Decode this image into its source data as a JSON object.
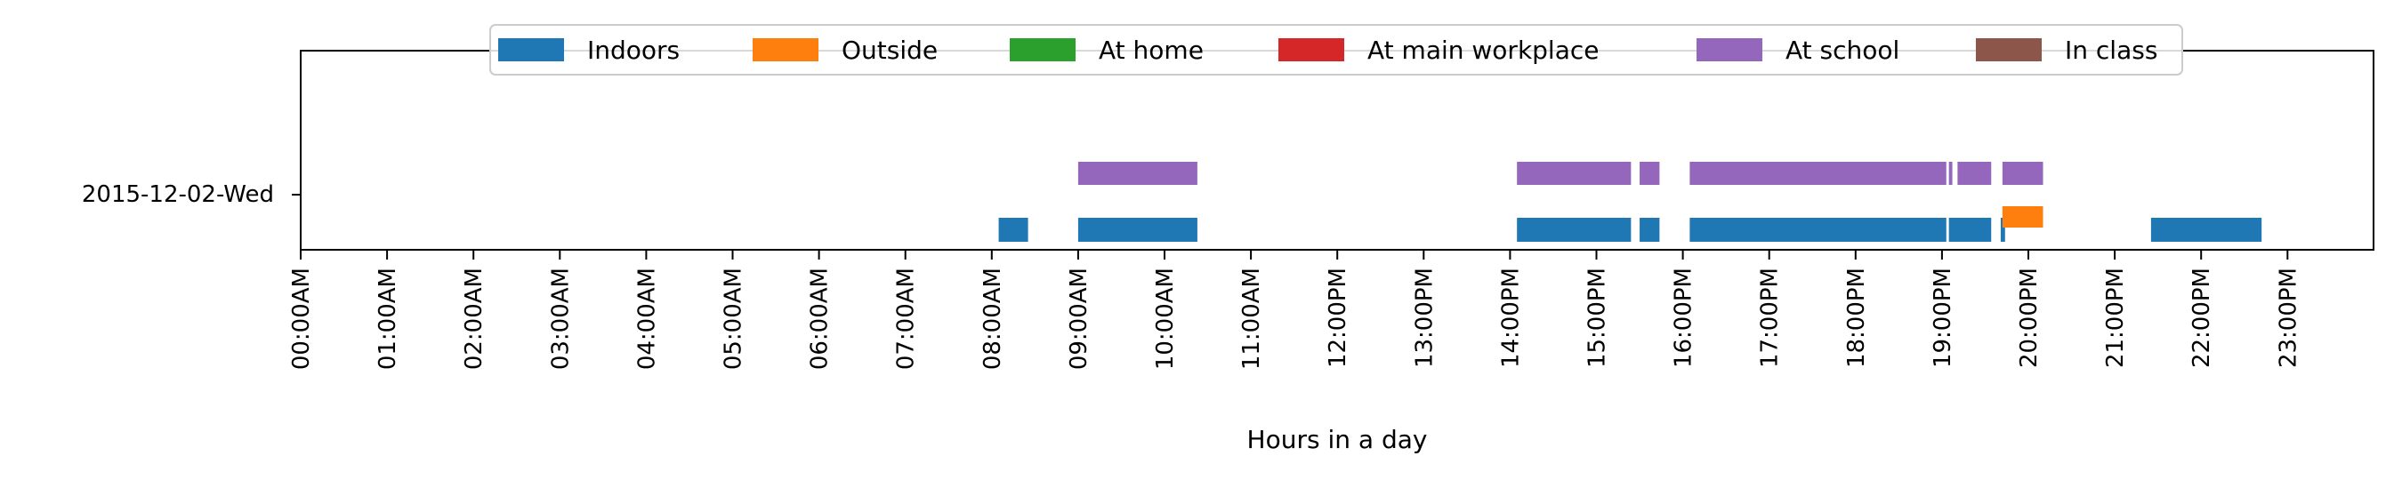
{
  "chart_data": {
    "type": "timeline",
    "title": "",
    "xlabel": "Hours in a day",
    "ylabel": "",
    "xlim": [
      0,
      24
    ],
    "x_unit": "hours",
    "row_label": "2015-12-02-Wed",
    "x_tick_labels": [
      "00:00AM",
      "01:00AM",
      "02:00AM",
      "03:00AM",
      "04:00AM",
      "05:00AM",
      "06:00AM",
      "07:00AM",
      "08:00AM",
      "09:00AM",
      "10:00AM",
      "11:00AM",
      "12:00PM",
      "13:00PM",
      "14:00PM",
      "15:00PM",
      "16:00PM",
      "17:00PM",
      "18:00PM",
      "19:00PM",
      "20:00PM",
      "21:00PM",
      "22:00PM",
      "23:00PM"
    ],
    "legend_position": "top-center",
    "series": [
      {
        "name": "Indoors",
        "color": "#1f77b4",
        "intervals": [
          [
            8.08,
            8.42
          ],
          [
            9.0,
            10.38
          ],
          [
            14.08,
            15.4
          ],
          [
            15.5,
            15.73
          ],
          [
            16.08,
            19.05
          ],
          [
            19.08,
            19.57
          ],
          [
            19.68,
            19.73
          ],
          [
            21.42,
            22.7
          ]
        ]
      },
      {
        "name": "Outside",
        "color": "#ff7f0e",
        "intervals": [
          [
            19.7,
            20.17
          ]
        ]
      },
      {
        "name": "At home",
        "color": "#2ca02c",
        "intervals": []
      },
      {
        "name": "At main workplace",
        "color": "#d62728",
        "intervals": []
      },
      {
        "name": "At school",
        "color": "#9467bd",
        "intervals": [
          [
            9.0,
            10.38
          ],
          [
            14.08,
            15.4
          ],
          [
            15.5,
            15.73
          ],
          [
            16.08,
            19.05
          ],
          [
            19.08,
            19.12
          ],
          [
            19.18,
            19.57
          ],
          [
            19.7,
            20.17
          ]
        ]
      },
      {
        "name": "In class",
        "color": "#8c564b",
        "intervals": []
      }
    ]
  }
}
